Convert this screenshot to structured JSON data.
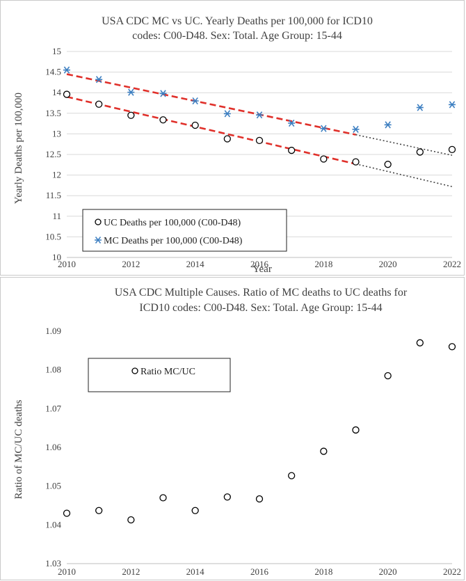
{
  "chart_data": [
    {
      "type": "scatter",
      "title_lines": [
        "USA CDC MC vs UC. Yearly Deaths per 100,000 for ICD10",
        "codes: C00-D48. Sex: Total. Age Group: 15-44"
      ],
      "xlabel": "Year",
      "ylabel": "Yearly Deaths per 100,000",
      "xlim": [
        2010,
        2022
      ],
      "ylim": [
        10,
        15
      ],
      "x_ticks": [
        2010,
        2012,
        2014,
        2016,
        2018,
        2020,
        2022
      ],
      "y_ticks": [
        10,
        10.5,
        11,
        11.5,
        12,
        12.5,
        13,
        13.5,
        14,
        14.5,
        15
      ],
      "y_tick_labels": [
        "10",
        "10.5",
        "11",
        "11.5",
        "12",
        "12.5",
        "13",
        "13.5",
        "14",
        "14.5",
        "15"
      ],
      "grid": "horizontal",
      "legend_position": "bottom-left",
      "x": [
        2010,
        2011,
        2012,
        2013,
        2014,
        2015,
        2016,
        2017,
        2018,
        2019,
        2020,
        2021,
        2022
      ],
      "series": [
        {
          "name": "UC Deaths per 100,000 (C00-D48)",
          "marker": "circle",
          "color": "#000000",
          "values": [
            13.96,
            13.72,
            13.45,
            13.34,
            13.21,
            12.88,
            12.84,
            12.6,
            12.39,
            12.32,
            12.26,
            12.56,
            12.62
          ]
        },
        {
          "name": "MC Deaths per 100,000 (C00-D48)",
          "marker": "asterisk",
          "color": "#3d7fc1",
          "values": [
            14.55,
            14.32,
            14.01,
            13.98,
            13.8,
            13.49,
            13.46,
            13.26,
            13.13,
            13.11,
            13.22,
            13.64,
            13.71
          ]
        }
      ],
      "trendlines": [
        {
          "series": "UC",
          "x": [
            2010,
            2019
          ],
          "y": [
            13.9,
            12.27
          ],
          "color": "#e0302a",
          "style": "dashed"
        },
        {
          "series": "UC",
          "x": [
            2019,
            2022
          ],
          "y": [
            12.27,
            11.72
          ],
          "color": "#444444",
          "style": "dotted"
        },
        {
          "series": "MC",
          "x": [
            2010,
            2019
          ],
          "y": [
            14.45,
            12.98
          ],
          "color": "#e0302a",
          "style": "dashed"
        },
        {
          "series": "MC",
          "x": [
            2019,
            2022
          ],
          "y": [
            12.98,
            12.48
          ],
          "color": "#444444",
          "style": "dotted"
        }
      ]
    },
    {
      "type": "scatter",
      "title_lines": [
        "USA CDC Multiple Causes. Ratio of MC deaths to UC deaths for",
        "ICD10 codes: C00-D48. Sex: Total. Age Group: 15-44"
      ],
      "xlabel": "",
      "ylabel": "Ratio of MC/UC deaths",
      "xlim": [
        2010,
        2022
      ],
      "ylim": [
        1.03,
        1.09
      ],
      "x_ticks": [
        2010,
        2012,
        2014,
        2016,
        2018,
        2020,
        2022
      ],
      "y_ticks": [
        1.03,
        1.04,
        1.05,
        1.06,
        1.07,
        1.08,
        1.09
      ],
      "y_tick_labels": [
        "1.03",
        "1.04",
        "1.05",
        "1.06",
        "1.07",
        "1.08",
        "1.09"
      ],
      "grid": "none",
      "legend_position": "top-left",
      "x": [
        2010,
        2011,
        2012,
        2013,
        2014,
        2015,
        2016,
        2017,
        2018,
        2019,
        2020,
        2021,
        2022
      ],
      "series": [
        {
          "name": "Ratio MC/UC",
          "marker": "circle",
          "color": "#000000",
          "values": [
            1.043,
            1.0437,
            1.0413,
            1.047,
            1.0437,
            1.0472,
            1.0467,
            1.0527,
            1.059,
            1.0645,
            1.0785,
            1.087,
            1.086
          ]
        }
      ]
    }
  ]
}
